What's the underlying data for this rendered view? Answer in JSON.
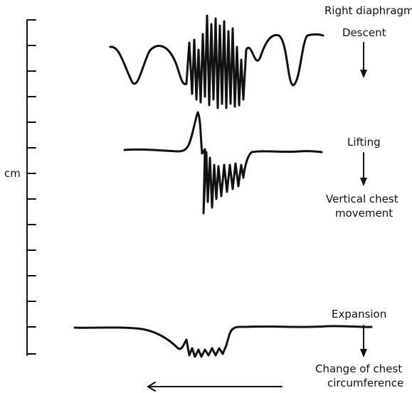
{
  "labels": {
    "right_diaphragm": "Right diaphragm",
    "descent": "Descent",
    "lifting": "Lifting",
    "vertical_chest_line1": "Vertical chest",
    "vertical_chest_line2": "movement",
    "expansion": "Expansion",
    "change_chest_line1": "Change of chest",
    "change_chest_line2": "circumference",
    "scale_unit": "cm"
  }
}
